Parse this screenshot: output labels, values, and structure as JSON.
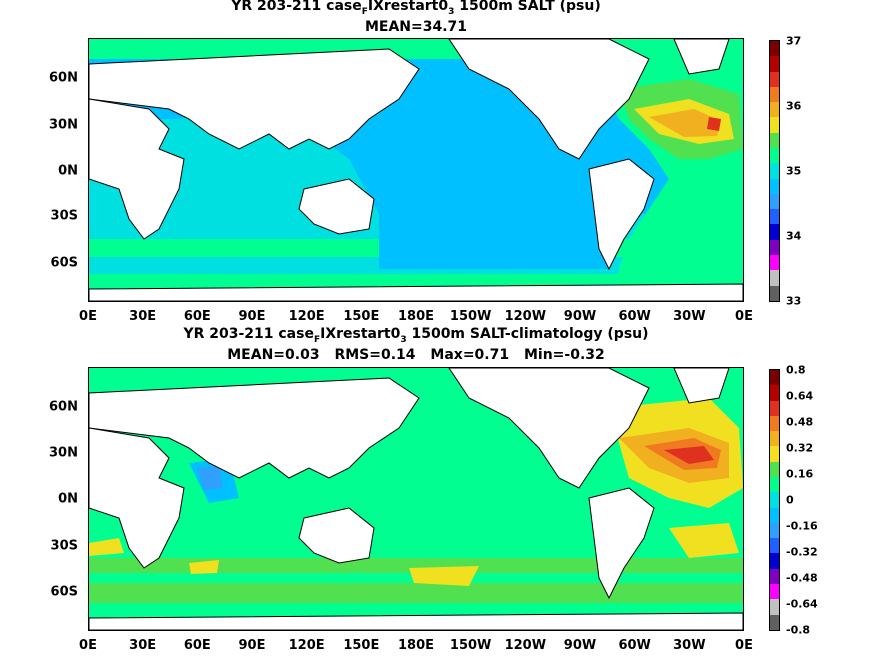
{
  "panels": [
    {
      "title_pre": "YR 203-211 case",
      "title_sub": "F",
      "title_mid": "IXrestart0",
      "title_sub2": "3",
      "title_post": " 1500m SALT (psu)",
      "stats": [
        "MEAN=34.71"
      ],
      "colorbar_labels": [
        "37",
        "36",
        "35",
        "34",
        "33"
      ],
      "colors": [
        "#7a0000",
        "#b40000",
        "#e03020",
        "#f07a20",
        "#f0b020",
        "#f0e020",
        "#50e050",
        "#00ff90",
        "#00e0e0",
        "#00c0ff",
        "#30a0ff",
        "#2060ff",
        "#0000d0",
        "#8000c0",
        "#ff00ff",
        "#c0c0c0",
        "#606060"
      ]
    },
    {
      "title_pre": "YR 203-211 case",
      "title_sub": "F",
      "title_mid": "IXrestart0",
      "title_sub2": "3",
      "title_post": " 1500m SALT-climatology (psu)",
      "stats": [
        "MEAN=0.03",
        "RMS=0.14",
        "Max=0.71",
        "Min=-0.32"
      ],
      "colorbar_labels": [
        "0.8",
        "0.64",
        "0.48",
        "0.32",
        "0.16",
        "0",
        "-0.16",
        "-0.32",
        "-0.48",
        "-0.64",
        "-0.8"
      ],
      "colors": [
        "#7a0000",
        "#b40000",
        "#e03020",
        "#f07a20",
        "#f0b020",
        "#f0e020",
        "#50e050",
        "#00ff90",
        "#00e0e0",
        "#00c0ff",
        "#30a0ff",
        "#2060ff",
        "#0000d0",
        "#8000c0",
        "#ff00ff",
        "#c0c0c0",
        "#606060"
      ]
    }
  ],
  "axes": {
    "lon_ticks": [
      "0E",
      "30E",
      "60E",
      "90E",
      "120E",
      "150E",
      "180E",
      "150W",
      "120W",
      "90W",
      "60W",
      "30W",
      "0E"
    ],
    "lat_ticks": [
      "60N",
      "30N",
      "0N",
      "30S",
      "60S"
    ]
  }
}
